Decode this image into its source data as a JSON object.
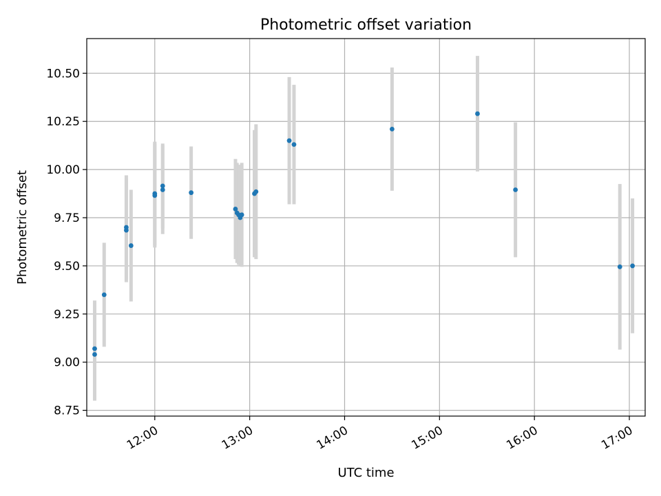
{
  "chart_data": {
    "type": "scatter",
    "title": "Photometric offset variation",
    "xlabel": "UTC time",
    "ylabel": "Photometric offset",
    "x_axis_type": "time",
    "xlim": [
      "11:17",
      "17:10"
    ],
    "ylim": [
      8.72,
      10.68
    ],
    "x_ticks": [
      "12:00",
      "13:00",
      "14:00",
      "15:00",
      "16:00",
      "17:00"
    ],
    "y_ticks": [
      "8.75",
      "9.00",
      "9.25",
      "9.50",
      "9.75",
      "10.00",
      "10.25",
      "10.50"
    ],
    "grid": true,
    "legend": "none",
    "colors": {
      "points": "#1f77b4",
      "error_bars": "#d3d3d3",
      "grid": "#b0b0b0"
    },
    "series": [
      {
        "points": [
          {
            "x": "11:22",
            "y": 9.07,
            "yerr": 0.25
          },
          {
            "x": "11:22",
            "y": 9.04,
            "yerr": 0.24
          },
          {
            "x": "11:28",
            "y": 9.35,
            "yerr": 0.27
          },
          {
            "x": "11:42",
            "y": 9.7,
            "yerr": 0.27
          },
          {
            "x": "11:42",
            "y": 9.685,
            "yerr": 0.27
          },
          {
            "x": "11:45",
            "y": 9.605,
            "yerr": 0.29
          },
          {
            "x": "12:00",
            "y": 9.875,
            "yerr": 0.27
          },
          {
            "x": "12:00",
            "y": 9.865,
            "yerr": 0.27
          },
          {
            "x": "12:05",
            "y": 9.915,
            "yerr": 0.22
          },
          {
            "x": "12:05",
            "y": 9.895,
            "yerr": 0.23
          },
          {
            "x": "12:23",
            "y": 9.88,
            "yerr": 0.24
          },
          {
            "x": "12:51",
            "y": 9.795,
            "yerr": 0.26
          },
          {
            "x": "12:52",
            "y": 9.775,
            "yerr": 0.26
          },
          {
            "x": "12:53",
            "y": 9.765,
            "yerr": 0.26
          },
          {
            "x": "12:54",
            "y": 9.75,
            "yerr": 0.25
          },
          {
            "x": "12:55",
            "y": 9.765,
            "yerr": 0.27
          },
          {
            "x": "13:03",
            "y": 9.875,
            "yerr": 0.33
          },
          {
            "x": "13:04",
            "y": 9.885,
            "yerr": 0.35
          },
          {
            "x": "13:25",
            "y": 10.15,
            "yerr": 0.33
          },
          {
            "x": "13:28",
            "y": 10.13,
            "yerr": 0.31
          },
          {
            "x": "14:30",
            "y": 10.21,
            "yerr": 0.32
          },
          {
            "x": "15:24",
            "y": 10.29,
            "yerr": 0.3
          },
          {
            "x": "15:48",
            "y": 9.895,
            "yerr": 0.35
          },
          {
            "x": "16:54",
            "y": 9.495,
            "yerr": 0.43
          },
          {
            "x": "17:02",
            "y": 9.5,
            "yerr": 0.35
          }
        ]
      }
    ]
  }
}
